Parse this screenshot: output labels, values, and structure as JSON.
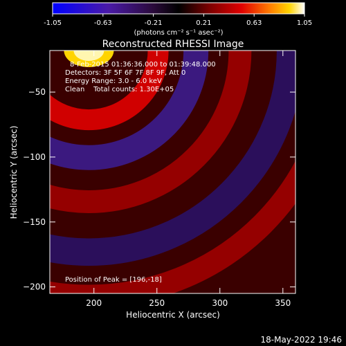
{
  "colorbar": {
    "tick_labels": [
      "-1.05",
      "-0.63",
      "-0.21",
      "0.21",
      "0.63",
      "1.05"
    ],
    "range": [
      -1.05,
      1.05
    ],
    "colormap": "blue-purple-black-red-orange-yellow-white",
    "unit_label": "(photons cm⁻² s⁻¹ asec⁻²)"
  },
  "title": "Reconstructed RHESSI Image",
  "annotations": {
    "time_range": "8-Feb-2015 01:36:36.000 to 01:39:48.000",
    "detectors": "Detectors: 3F 5F 6F 7F 8F 9F, Att 0",
    "energy": "Energy Range: 3.0 - 6.0 keV",
    "clean": "Clean    Total counts: 1.30E+05",
    "peak": "Position of Peak = [196,-18]"
  },
  "footer_timestamp": "18-May-2022 19:46",
  "chart_data": {
    "type": "heatmap",
    "title": "Reconstructed RHESSI Image",
    "xlabel": "Heliocentric X (arcsec)",
    "ylabel": "Heliocentric Y (arcsec)",
    "xlim": [
      165,
      360
    ],
    "ylim": [
      -205,
      -18
    ],
    "x_ticks": [
      200,
      250,
      300,
      350
    ],
    "y_ticks": [
      -50,
      -100,
      -150,
      -200
    ],
    "x_tick_labels": [
      "200",
      "250",
      "300",
      "350"
    ],
    "y_tick_labels": [
      "−50",
      "−100",
      "−150",
      "−200"
    ],
    "value_range": [
      -1.05,
      1.05
    ],
    "peak_position": [
      196,
      -18
    ],
    "description_of_pattern": [
      {
        "feature": "bright source",
        "center": [
          196,
          -18
        ],
        "value": 1.05
      },
      {
        "feature": "positive ring",
        "center": [
          196,
          -18
        ],
        "radius": 55,
        "value": 0.55
      },
      {
        "feature": "negative ring",
        "center": [
          196,
          -18
        ],
        "radius": 85,
        "value": -0.5
      },
      {
        "feature": "positive ring",
        "center": [
          196,
          -18
        ],
        "radius": 120,
        "value": 0.35
      },
      {
        "feature": "negative ring",
        "center": [
          196,
          -18
        ],
        "radius": 160,
        "value": -0.45
      },
      {
        "feature": "positive ring",
        "center": [
          196,
          -18
        ],
        "radius": 195,
        "value": 0.3
      }
    ]
  }
}
